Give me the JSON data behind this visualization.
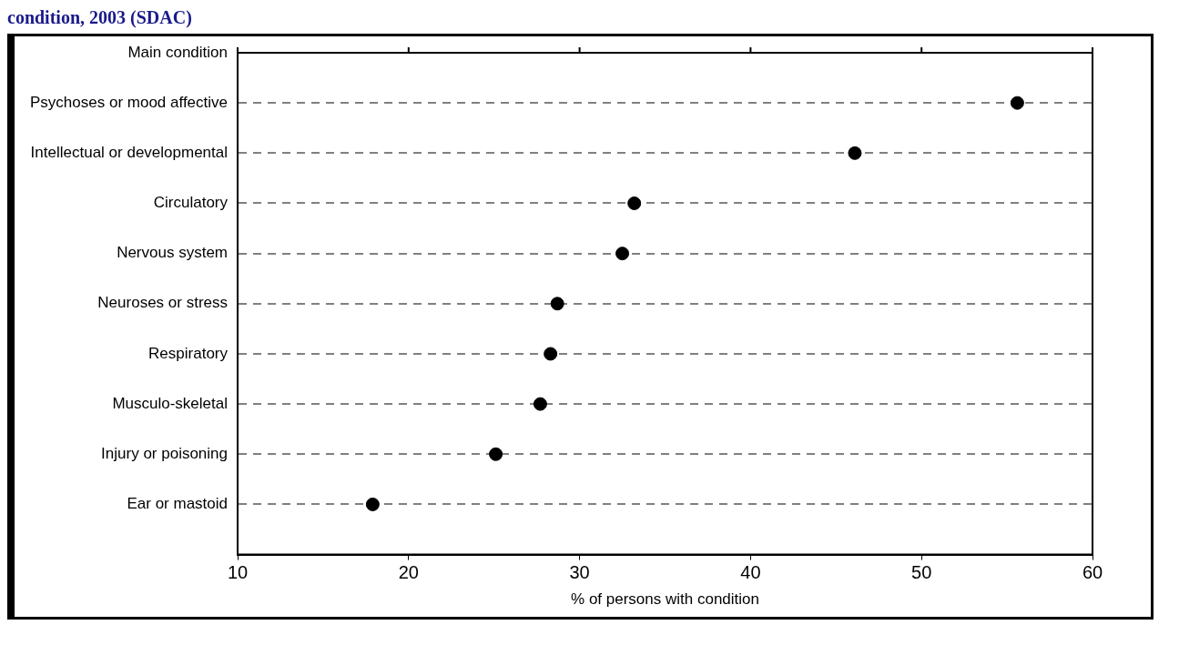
{
  "chart_data": {
    "type": "scatter",
    "title": "condition, 2003 (SDAC)",
    "categories": [
      "Psychoses or mood affective",
      "Intellectual or developmental",
      "Circulatory",
      "Nervous system",
      "Neuroses or stress",
      "Respiratory",
      "Musculo-skeletal",
      "Injury or poisoning",
      "Ear or mastoid"
    ],
    "values": [
      55.6,
      46.1,
      33.2,
      32.5,
      28.7,
      28.3,
      27.7,
      25.1,
      17.9
    ],
    "color": "#000000",
    "ylabel": "Main condition",
    "xlabel": "% of persons with condition",
    "xlim": [
      10,
      60
    ],
    "xticks": [
      10,
      20,
      30,
      40,
      50,
      60
    ],
    "grid": "y",
    "marker": "circle",
    "orientation": "horizontal"
  }
}
